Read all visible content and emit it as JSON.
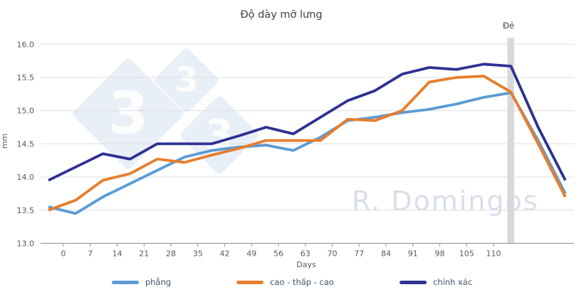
{
  "title": "Độ dày mỡ lưng",
  "axes": {
    "y_label": "mm",
    "x_label": "Days"
  },
  "farrowing": {
    "label": "Đẻ",
    "x_index": 17,
    "band_color": "#d8d8d8"
  },
  "watermark": {
    "author": "R. Domingos",
    "logo_digits": [
      "3",
      "3",
      "3"
    ],
    "logo_color": "#e9eff7",
    "digit_color": "#fdfdfe",
    "author_color": "#d9deea"
  },
  "colors": {
    "grid": "#dedede",
    "axis": "#9a9a9a",
    "tick_text": "#595959",
    "title_text": "#3f3f3f"
  },
  "chart_data": {
    "type": "line",
    "title": "Độ dày mỡ lưng",
    "xlabel": "Days",
    "ylabel": "mm",
    "ylim": [
      13.0,
      16.0
    ],
    "grid": true,
    "legend_position": "bottom",
    "y_tick_labels": [
      "13.0",
      "13.5",
      "14.0",
      "14.5",
      "15.0",
      "15.5",
      "16.0"
    ],
    "x_tick_labels": [
      "0",
      "7",
      "14",
      "21",
      "28",
      "35",
      "42",
      "49",
      "56",
      "63",
      "70",
      "77",
      "84",
      "91",
      "98",
      "105",
      "110"
    ],
    "n_points": 20,
    "annotation": "vertical band labelled Đẻ (farrowing) at point index 17; last three points are unlabelled on the x-axis",
    "series": [
      {
        "name": "phẳng",
        "color": "#5B9BD5",
        "values": [
          13.55,
          13.45,
          13.7,
          13.9,
          14.1,
          14.3,
          14.4,
          14.45,
          14.48,
          14.4,
          14.6,
          14.85,
          14.9,
          14.97,
          15.02,
          15.1,
          15.2,
          15.27,
          14.55,
          13.75
        ]
      },
      {
        "name": "cao - thấp - cao",
        "color": "#E87D2B",
        "values": [
          13.5,
          13.65,
          13.95,
          14.05,
          14.27,
          14.22,
          14.33,
          14.43,
          14.55,
          14.55,
          14.55,
          14.87,
          14.85,
          15.0,
          15.43,
          15.5,
          15.52,
          15.28,
          14.5,
          13.7
        ]
      },
      {
        "name": "chính xác",
        "color": "#2E3192",
        "values": [
          13.95,
          14.15,
          14.35,
          14.27,
          14.5,
          14.5,
          14.5,
          14.62,
          14.75,
          14.65,
          14.9,
          15.15,
          15.3,
          15.55,
          15.65,
          15.62,
          15.7,
          15.67,
          14.75,
          13.95
        ]
      }
    ]
  }
}
